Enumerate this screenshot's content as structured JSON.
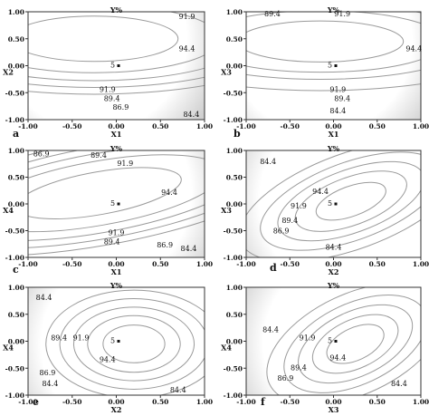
{
  "chart_data": [
    {
      "type": "contour",
      "panel": "a",
      "title": "Y%",
      "xlabel": "X1",
      "ylabel": "X2",
      "xticks": [
        "-1.00",
        "-0.50",
        "0.00",
        "0.50",
        "1.00"
      ],
      "yticks": [
        "-1.00",
        "-0.50",
        "0.00",
        "0.50",
        "1.00"
      ],
      "xlim": [
        -1,
        1
      ],
      "ylim": [
        -1,
        1
      ],
      "design_point": {
        "label": "5",
        "x": 0.0,
        "y": 0.0
      },
      "center": [
        -0.25,
        0.5
      ],
      "rx": 0.95,
      "ry": 0.42,
      "angle": 0,
      "levels": [
        {
          "label": "94.4",
          "scale": 1.0,
          "label_at": [
            0.8,
            0.3
          ]
        },
        {
          "label": "91.9",
          "scale": 1.5,
          "label_at": [
            -0.1,
            -0.45
          ]
        },
        {
          "label": "89.4",
          "scale": 1.85,
          "label_at": [
            -0.05,
            -0.62
          ]
        },
        {
          "label": "86.9",
          "scale": 2.15,
          "label_at": [
            0.05,
            -0.78
          ]
        },
        {
          "label": "84.4",
          "scale": 2.45,
          "label_at": [
            0.85,
            -0.92
          ]
        },
        {
          "label": "91.9",
          "scale": 1.5,
          "label_at": [
            0.8,
            0.9
          ],
          "draw": false
        }
      ]
    },
    {
      "type": "contour",
      "panel": "b",
      "title": "Y%",
      "xlabel": "X1",
      "ylabel": "X3",
      "xticks": [
        "-1.00",
        "-0.50",
        "0.00",
        "0.50",
        "1.00"
      ],
      "yticks": [
        "-1.00",
        "-0.50",
        "0.00",
        "0.50",
        "1.00"
      ],
      "xlim": [
        -1,
        1
      ],
      "ylim": [
        -1,
        1
      ],
      "design_point": {
        "label": "5",
        "x": 0.0,
        "y": 0.0
      },
      "center": [
        -0.15,
        0.45
      ],
      "rx": 0.95,
      "ry": 0.38,
      "angle": 0,
      "levels": [
        {
          "label": "94.4",
          "scale": 1.0,
          "label_at": [
            0.92,
            0.3
          ]
        },
        {
          "label": "91.9",
          "scale": 1.5,
          "label_at": [
            0.05,
            -0.45
          ]
        },
        {
          "label": "89.4",
          "scale": 1.85,
          "label_at": [
            0.1,
            -0.62
          ]
        },
        {
          "label": "84.4",
          "scale": 2.4,
          "label_at": [
            0.05,
            -0.85
          ]
        },
        {
          "label": "89.4",
          "scale": 1.85,
          "label_at": [
            -0.7,
            0.95
          ],
          "draw": false
        },
        {
          "label": "91.9",
          "scale": 1.5,
          "label_at": [
            0.1,
            0.95
          ],
          "draw": false
        }
      ]
    },
    {
      "type": "contour",
      "panel": "c",
      "title": "Y%",
      "xlabel": "X1",
      "ylabel": "X4",
      "xticks": [
        "-1.00",
        "-0.50",
        "0.00",
        "0.50",
        "1.00"
      ],
      "yticks": [
        "-1.00",
        "-0.50",
        "0.00",
        "0.50",
        "1.00"
      ],
      "xlim": [
        -1,
        1
      ],
      "ylim": [
        -1,
        1
      ],
      "design_point": {
        "label": "5",
        "x": 0.0,
        "y": 0.0
      },
      "center": [
        -0.2,
        0.2
      ],
      "rx": 0.95,
      "ry": 0.4,
      "angle": -10,
      "levels": [
        {
          "label": "94.4",
          "scale": 1.0,
          "label_at": [
            0.6,
            0.2
          ]
        },
        {
          "label": "91.9",
          "scale": 1.5,
          "label_at": [
            0.0,
            -0.55
          ]
        },
        {
          "label": "89.4",
          "scale": 1.85,
          "label_at": [
            -0.05,
            -0.72
          ]
        },
        {
          "label": "86.9",
          "scale": 2.15,
          "label_at": [
            0.55,
            -0.78
          ]
        },
        {
          "label": "84.4",
          "scale": 2.45,
          "label_at": [
            0.82,
            -0.85
          ]
        },
        {
          "label": "86.9",
          "scale": 2.15,
          "label_at": [
            -0.85,
            0.92
          ],
          "draw": false
        },
        {
          "label": "89.4",
          "scale": 1.85,
          "label_at": [
            -0.2,
            0.9
          ],
          "draw": false
        },
        {
          "label": "91.9",
          "scale": 1.5,
          "label_at": [
            0.1,
            0.75
          ],
          "draw": false
        }
      ]
    },
    {
      "type": "contour",
      "panel": "d",
      "title": "Y%",
      "xlabel": "X2",
      "ylabel": "X3",
      "xticks": [
        "-1.00",
        "-0.50",
        "0.00",
        "0.50",
        "1.00"
      ],
      "yticks": [
        "-1.00",
        "-0.50",
        "0.00",
        "0.50",
        "1.00"
      ],
      "xlim": [
        -1,
        1
      ],
      "ylim": [
        -1,
        1
      ],
      "design_point": {
        "label": "5",
        "x": 0.0,
        "y": 0.0
      },
      "center": [
        0.2,
        0.05
      ],
      "rx": 0.42,
      "ry": 0.28,
      "angle": -20,
      "levels": [
        {
          "label": "94.4",
          "scale": 1.0,
          "label_at": [
            -0.15,
            0.22
          ]
        },
        {
          "label": "91.9",
          "scale": 1.6,
          "label_at": [
            -0.4,
            -0.05
          ]
        },
        {
          "label": "89.4",
          "scale": 2.1,
          "label_at": [
            -0.5,
            -0.32
          ]
        },
        {
          "label": "86.9",
          "scale": 2.6,
          "label_at": [
            -0.6,
            -0.52
          ]
        },
        {
          "label": "84.4",
          "scale": 3.2,
          "label_at": [
            0.0,
            -0.82
          ]
        },
        {
          "label": "84.4",
          "scale": 3.2,
          "label_at": [
            -0.75,
            0.78
          ],
          "draw": false
        }
      ]
    },
    {
      "type": "contour",
      "panel": "e",
      "title": "Y%",
      "xlabel": "X2",
      "ylabel": "X4",
      "xticks": [
        "-1.00",
        "-0.50",
        "0.00",
        "0.50",
        "1.00"
      ],
      "yticks": [
        "-1.00",
        "-0.50",
        "0.00",
        "0.50",
        "1.00"
      ],
      "xlim": [
        -1,
        1
      ],
      "ylim": [
        -1,
        1
      ],
      "design_point": {
        "label": "5",
        "x": 0.0,
        "y": 0.0
      },
      "center": [
        0.2,
        -0.05
      ],
      "rx": 0.35,
      "ry": 0.35,
      "angle": 0,
      "levels": [
        {
          "label": "94.4",
          "scale": 1.0,
          "label_at": [
            -0.1,
            -0.35
          ]
        },
        {
          "label": "91.9",
          "scale": 1.5,
          "label_at": [
            -0.4,
            0.05
          ]
        },
        {
          "label": "89.4",
          "scale": 1.95,
          "label_at": [
            -0.65,
            0.05
          ]
        },
        {
          "label": "86.9",
          "scale": 2.4,
          "label_at": [
            -0.78,
            -0.6
          ]
        },
        {
          "label": "84.4",
          "scale": 2.85,
          "label_at": [
            -0.75,
            -0.8
          ]
        },
        {
          "label": "84.4",
          "scale": 2.85,
          "label_at": [
            -0.82,
            0.8
          ],
          "draw": false
        },
        {
          "label": "84.4",
          "scale": 2.85,
          "label_at": [
            0.7,
            -0.92
          ],
          "draw": false
        }
      ]
    },
    {
      "type": "contour",
      "panel": "f",
      "title": "Y%",
      "xlabel": "X3",
      "ylabel": "X4",
      "xticks": [
        "-1.00",
        "-0.50",
        "0.00",
        "0.50",
        "1.00"
      ],
      "yticks": [
        "-1.00",
        "-0.50",
        "0.00",
        "0.50",
        "1.00"
      ],
      "xlim": [
        -1,
        1
      ],
      "ylim": [
        -1,
        1
      ],
      "design_point": {
        "label": "5",
        "x": 0.0,
        "y": 0.0
      },
      "center": [
        0.25,
        -0.05
      ],
      "rx": 0.35,
      "ry": 0.3,
      "angle": -25,
      "levels": [
        {
          "label": "94.4",
          "scale": 1.0,
          "label_at": [
            0.05,
            -0.32
          ]
        },
        {
          "label": "91.9",
          "scale": 1.5,
          "label_at": [
            -0.3,
            0.05
          ]
        },
        {
          "label": "89.4",
          "scale": 2.0,
          "label_at": [
            -0.4,
            -0.5
          ]
        },
        {
          "label": "86.9",
          "scale": 2.5,
          "label_at": [
            -0.55,
            -0.7
          ]
        },
        {
          "label": "84.4",
          "scale": 3.1,
          "label_at": [
            0.75,
            -0.8
          ]
        },
        {
          "label": "84.4",
          "scale": 3.1,
          "label_at": [
            -0.72,
            0.2
          ],
          "draw": false
        }
      ]
    }
  ],
  "colors": {
    "contour": "#9a9a9a",
    "frame": "#333333",
    "text": "#111111",
    "inner": "#ffffff",
    "outer": "#cfcfcf"
  }
}
